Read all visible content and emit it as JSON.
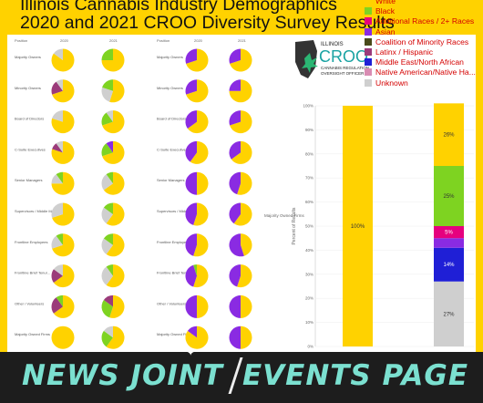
{
  "header": {
    "title_line1": "Illinois Cannabis Industry Demographics",
    "title_line2": "2020 and 2021 CROO Diversity Survey Results"
  },
  "legend": {
    "items": [
      {
        "label": "White",
        "color": "#ffd200"
      },
      {
        "label": "Black",
        "color": "#7ed321"
      },
      {
        "label": "Additional Races / 2+ Races",
        "color": "#e6007e"
      },
      {
        "label": "Asian",
        "color": "#8a2be2"
      },
      {
        "label": "Coalition of Minority Races",
        "color": "#4a4a1a"
      },
      {
        "label": "Latinx / Hispanic",
        "color": "#9b3b7a"
      },
      {
        "label": "Middle East/North African",
        "color": "#1f1fd6"
      },
      {
        "label": "Native American/Native Ha...",
        "color": "#d98cb3"
      },
      {
        "label": "Unknown",
        "color": "#cfcfcf"
      }
    ]
  },
  "logo": {
    "line1": "ILLINOIS",
    "line2": "CROO",
    "line3": "CANNABIS REGULATION",
    "line4": "OVERSIGHT OFFICER"
  },
  "left_table": {
    "col_position": "Position",
    "col_2020": "2020",
    "col_2021": "2021",
    "rows": [
      "Majority Owners",
      "Minority Owners",
      "Board of Directors",
      "C-Suite Executives",
      "Senior Managers",
      "Supervisors / Middle Managers",
      "Frontline Employees",
      "Frontline Brief Tenur...",
      "Other / Volunteers",
      "Majority Owned Firms"
    ]
  },
  "right_table": {
    "col_position": "Position",
    "col_2020": "2020",
    "col_2021": "2021",
    "rows": [
      "Majority Owners",
      "Minority Owners",
      "Board of Directors",
      "C-Suite Executives",
      "Senior Managers",
      "Supervisors / Middle Managers",
      "Frontline Employees",
      "Frontline Brief Tenure",
      "Other / Volunteers",
      "Majority Owned Firms"
    ],
    "side_label": "Majority Owned Firms"
  },
  "chart_data": {
    "type": "bar",
    "stacked": true,
    "ylabel": "Percent of Results",
    "yticks": [
      "0%",
      "10%",
      "20%",
      "30%",
      "40%",
      "50%",
      "60%",
      "70%",
      "80%",
      "90%",
      "100%"
    ],
    "ylim": [
      0,
      100
    ],
    "bars": [
      {
        "segments": [
          {
            "name": "White",
            "value": 100,
            "label": "100%",
            "color": "#ffd200"
          }
        ]
      },
      {
        "segments": [
          {
            "name": "Unknown",
            "value": 27,
            "label": "27%",
            "color": "#cfcfcf"
          },
          {
            "name": "Middle East/North African",
            "value": 14,
            "label": "14%",
            "color": "#1f1fd6"
          },
          {
            "name": "Asian",
            "value": 4,
            "label": "",
            "color": "#8a2be2"
          },
          {
            "name": "Additional Races / 2+ Races",
            "value": 5,
            "label": "5%",
            "color": "#e6007e"
          },
          {
            "name": "Black",
            "value": 25,
            "label": "25%",
            "color": "#7ed321"
          },
          {
            "name": "White",
            "value": 26,
            "label": "26%",
            "color": "#ffd200"
          }
        ]
      }
    ]
  },
  "banner": {
    "left": "NEWS JOINT",
    "right": "EVENTS PAGE"
  }
}
